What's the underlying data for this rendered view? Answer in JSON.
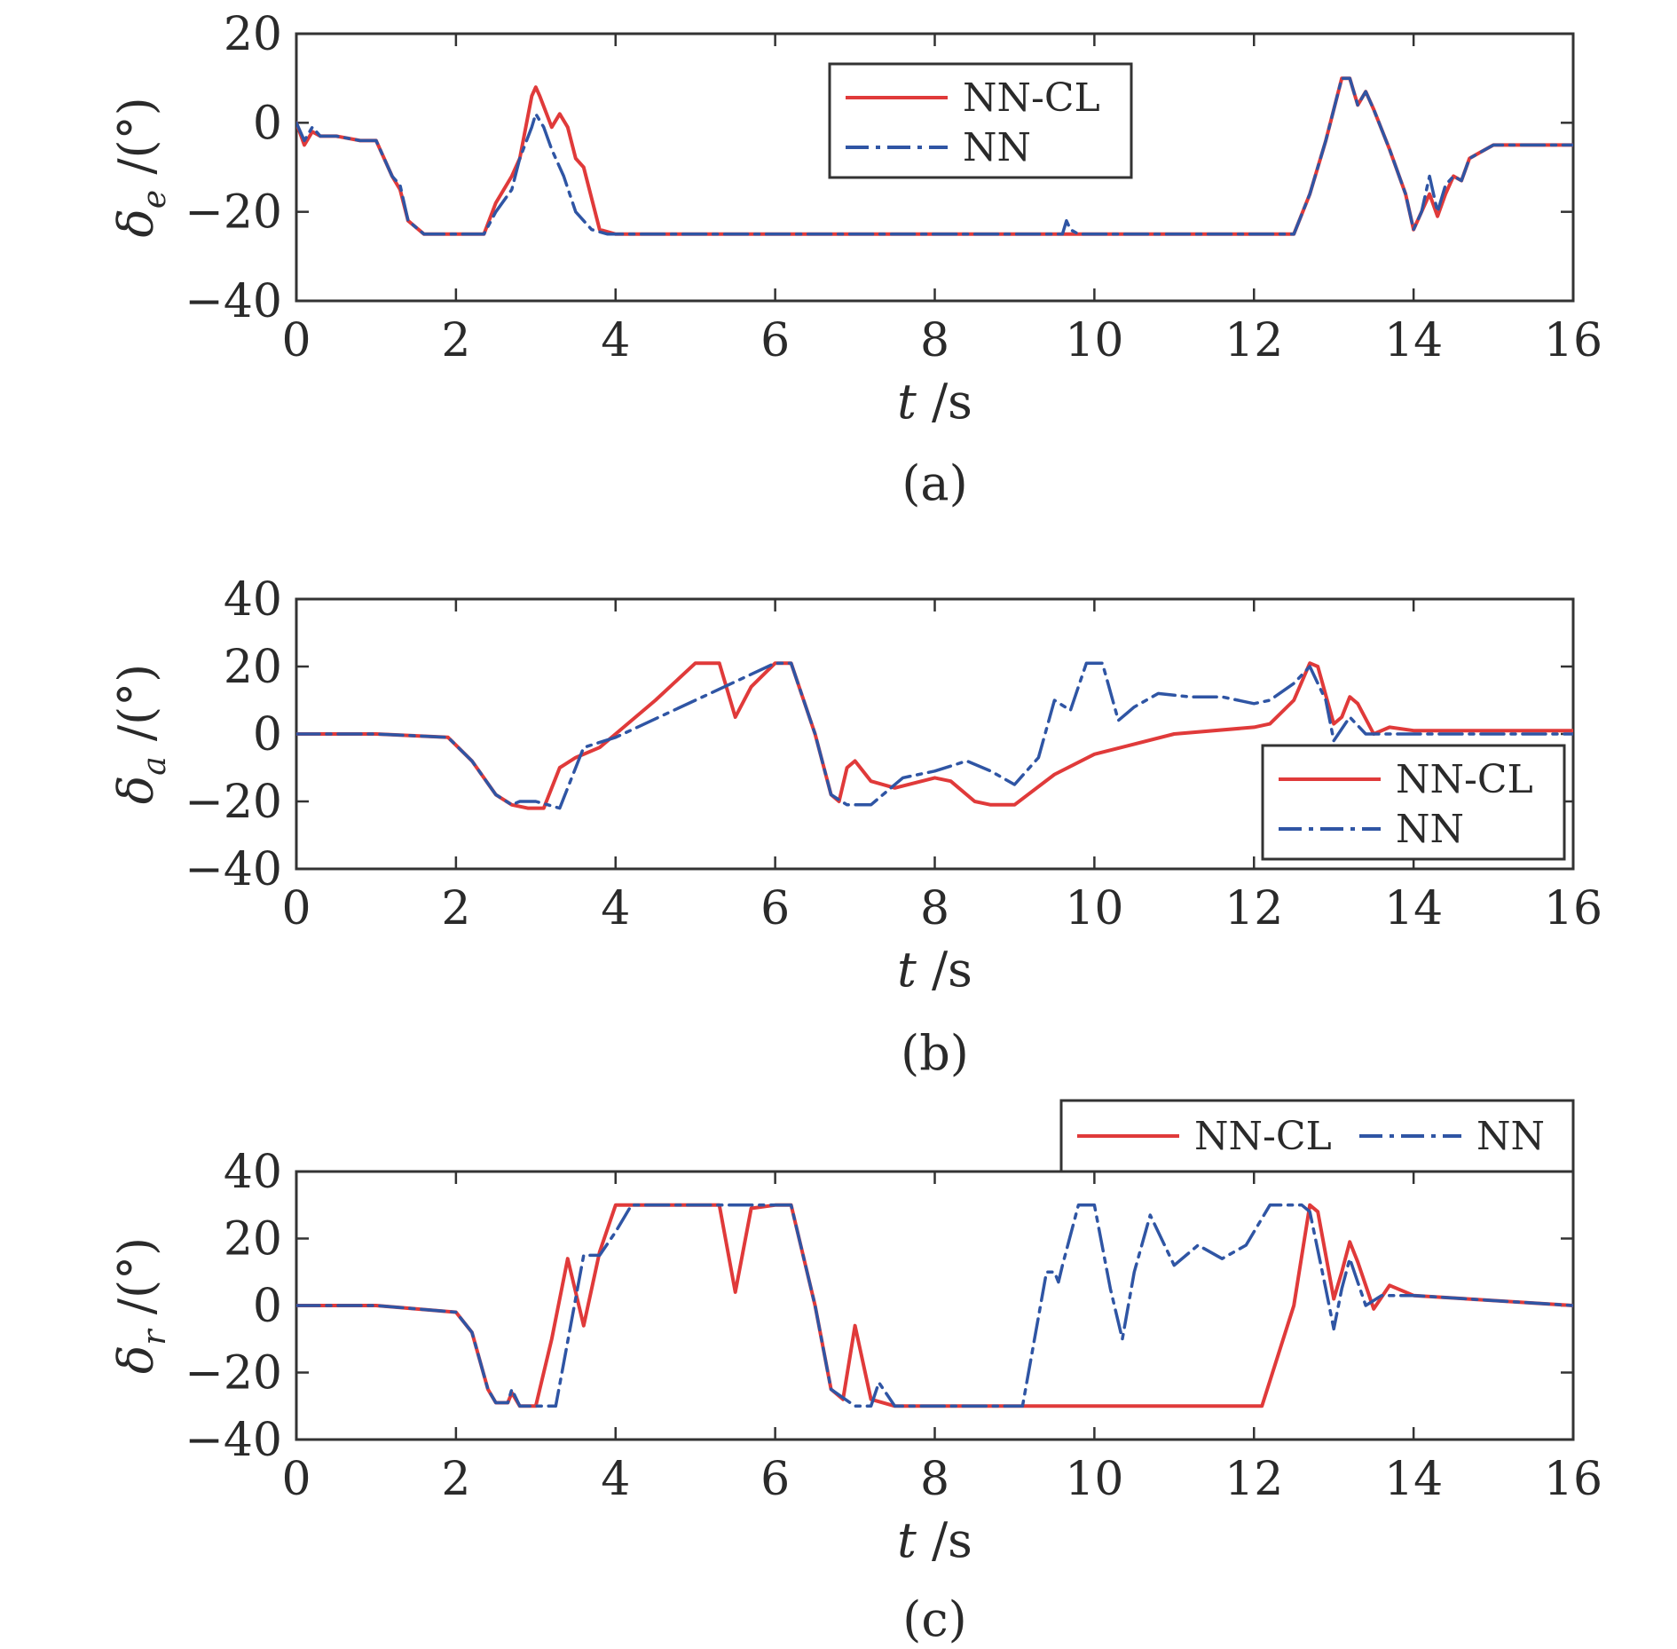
{
  "colors": {
    "nn_cl": "#e03a3a",
    "nn": "#2f55a4",
    "axis": "#333333"
  },
  "chart_data": [
    {
      "type": "line",
      "panel_caption": "(a)",
      "ylabel": {
        "symbol": "δ",
        "sub": "e",
        "unit": " /(°)"
      },
      "xlabel": {
        "symbol": "t",
        "unit": " /s"
      },
      "xlim": [
        0,
        16
      ],
      "ylim": [
        -40,
        20
      ],
      "xticks": [
        0,
        2,
        4,
        6,
        8,
        10,
        12,
        14,
        16
      ],
      "yticks": [
        -40,
        -20,
        0,
        20
      ],
      "xtick_labels": [
        "0",
        "2",
        "4",
        "6",
        "8",
        "10",
        "12",
        "14",
        "16"
      ],
      "ytick_labels": [
        "−40",
        "−20",
        "0",
        "20"
      ],
      "legend": {
        "placement": "top-center",
        "layout": "vertical",
        "entries": [
          "NN-CL",
          "NN"
        ]
      },
      "series": [
        {
          "name": "NN-CL",
          "style": "solid",
          "x": [
            0,
            0.1,
            0.2,
            0.3,
            0.5,
            0.8,
            1.0,
            1.2,
            1.3,
            1.4,
            1.6,
            1.8,
            2.0,
            2.35,
            2.5,
            2.7,
            2.8,
            2.95,
            3.0,
            3.05,
            3.2,
            3.3,
            3.4,
            3.5,
            3.6,
            3.8,
            4.0,
            6,
            8,
            10,
            12,
            12.5,
            12.7,
            12.9,
            13.1,
            13.2,
            13.3,
            13.4,
            13.5,
            13.7,
            13.9,
            14.0,
            14.1,
            14.2,
            14.3,
            14.4,
            14.5,
            14.6,
            14.7,
            14.8,
            15.0,
            16
          ],
          "y": [
            0,
            -5,
            -2,
            -3,
            -3,
            -4,
            -4,
            -12,
            -15,
            -22,
            -25,
            -25,
            -25,
            -25,
            -18,
            -12,
            -8,
            6,
            8,
            6,
            -1,
            2,
            -1,
            -8,
            -10,
            -24,
            -25,
            -25,
            -25,
            -25,
            -25,
            -25,
            -16,
            -4,
            10,
            10,
            4,
            7,
            3,
            -6,
            -16,
            -24,
            -20,
            -16,
            -21,
            -16,
            -12,
            -13,
            -8,
            -7,
            -5,
            -5
          ]
        },
        {
          "name": "NN",
          "style": "dashdot",
          "x": [
            0,
            0.1,
            0.2,
            0.3,
            0.5,
            0.8,
            1.0,
            1.2,
            1.3,
            1.4,
            1.6,
            1.8,
            2.0,
            2.35,
            2.5,
            2.7,
            2.8,
            2.95,
            3.0,
            3.1,
            3.2,
            3.35,
            3.5,
            3.7,
            3.9,
            4.0,
            6,
            8,
            9.6,
            9.65,
            9.7,
            9.8,
            10,
            12,
            12.5,
            12.7,
            12.9,
            13.1,
            13.2,
            13.3,
            13.4,
            13.5,
            13.7,
            13.9,
            14.0,
            14.1,
            14.2,
            14.3,
            14.4,
            14.5,
            14.6,
            14.7,
            14.8,
            15.0,
            16
          ],
          "y": [
            0,
            -4,
            -1,
            -3,
            -3,
            -4,
            -4,
            -12,
            -14,
            -22,
            -25,
            -25,
            -25,
            -25,
            -20,
            -15,
            -8,
            -1,
            2,
            -1,
            -6,
            -12,
            -20,
            -24,
            -25,
            -25,
            -25,
            -25,
            -25,
            -22,
            -24,
            -25,
            -25,
            -25,
            -25,
            -16,
            -4,
            10,
            10,
            4,
            7,
            3,
            -6,
            -16,
            -24,
            -20,
            -12,
            -20,
            -14,
            -12,
            -13,
            -8,
            -7,
            -5,
            -5
          ]
        }
      ]
    },
    {
      "type": "line",
      "panel_caption": "(b)",
      "ylabel": {
        "symbol": "δ",
        "sub": "a",
        "unit": " /(°)"
      },
      "xlabel": {
        "symbol": "t",
        "unit": " /s"
      },
      "xlim": [
        0,
        16
      ],
      "ylim": [
        -40,
        40
      ],
      "xticks": [
        0,
        2,
        4,
        6,
        8,
        10,
        12,
        14,
        16
      ],
      "yticks": [
        -40,
        -20,
        0,
        20,
        40
      ],
      "xtick_labels": [
        "0",
        "2",
        "4",
        "6",
        "8",
        "10",
        "12",
        "14",
        "16"
      ],
      "ytick_labels": [
        "−40",
        "−20",
        "0",
        "20",
        "40"
      ],
      "legend": {
        "placement": "bottom-right",
        "layout": "vertical",
        "entries": [
          "NN-CL",
          "NN"
        ]
      },
      "series": [
        {
          "name": "NN-CL",
          "style": "solid",
          "x": [
            0,
            1,
            1.9,
            2.2,
            2.5,
            2.7,
            2.9,
            3.1,
            3.3,
            3.5,
            3.8,
            4.0,
            4.5,
            5.0,
            5.3,
            5.5,
            5.7,
            6.0,
            6.2,
            6.5,
            6.7,
            6.8,
            6.9,
            7.0,
            7.2,
            7.5,
            8.0,
            8.2,
            8.5,
            8.7,
            9.0,
            9.5,
            10,
            11,
            12,
            12.2,
            12.5,
            12.7,
            12.8,
            13.0,
            13.1,
            13.2,
            13.3,
            13.5,
            13.7,
            14,
            16
          ],
          "y": [
            0,
            0,
            -1,
            -8,
            -18,
            -21,
            -22,
            -22,
            -10,
            -7,
            -4,
            0,
            10,
            21,
            21,
            5,
            14,
            21,
            21,
            0,
            -18,
            -20,
            -10,
            -8,
            -14,
            -16,
            -13,
            -14,
            -20,
            -21,
            -21,
            -12,
            -6,
            0,
            2,
            3,
            10,
            21,
            20,
            3,
            5,
            11,
            9,
            0,
            2,
            1,
            1
          ]
        },
        {
          "name": "NN",
          "style": "dashdot",
          "x": [
            0,
            1,
            1.9,
            2.2,
            2.5,
            2.7,
            2.8,
            3.0,
            3.3,
            3.6,
            4.0,
            5.0,
            6.0,
            6.2,
            6.5,
            6.7,
            6.9,
            7.2,
            7.6,
            8.0,
            8.4,
            8.7,
            9.0,
            9.3,
            9.5,
            9.7,
            9.9,
            10.1,
            10.3,
            10.5,
            10.8,
            11.2,
            11.6,
            12.0,
            12.2,
            12.5,
            12.7,
            12.9,
            13.0,
            13.2,
            13.4,
            14,
            16
          ],
          "y": [
            0,
            0,
            -1,
            -8,
            -18,
            -21,
            -20,
            -20,
            -22,
            -4,
            -1,
            10,
            21,
            21,
            0,
            -18,
            -21,
            -21,
            -13,
            -11,
            -8,
            -11,
            -15,
            -7,
            10,
            7,
            21,
            21,
            4,
            8,
            12,
            11,
            11,
            9,
            10,
            15,
            20,
            10,
            -2,
            5,
            0,
            0,
            0
          ]
        }
      ]
    },
    {
      "type": "line",
      "panel_caption": "(c)",
      "ylabel": {
        "symbol": "δ",
        "sub": "r",
        "unit": " /(°)"
      },
      "xlabel": {
        "symbol": "t",
        "unit": " /s"
      },
      "xlim": [
        0,
        16
      ],
      "ylim": [
        -40,
        40
      ],
      "xticks": [
        0,
        2,
        4,
        6,
        8,
        10,
        12,
        14,
        16
      ],
      "yticks": [
        -40,
        -20,
        0,
        20,
        40
      ],
      "xtick_labels": [
        "0",
        "2",
        "4",
        "6",
        "8",
        "10",
        "12",
        "14",
        "16"
      ],
      "ytick_labels": [
        "−40",
        "−20",
        "0",
        "20",
        "40"
      ],
      "legend": {
        "placement": "above-right",
        "layout": "horizontal",
        "entries": [
          "NN-CL",
          "NN"
        ]
      },
      "series": [
        {
          "name": "NN-CL",
          "style": "solid",
          "x": [
            0,
            1,
            2,
            2.2,
            2.4,
            2.5,
            2.65,
            2.7,
            2.8,
            3.0,
            3.2,
            3.4,
            3.6,
            3.8,
            4.0,
            5.3,
            5.5,
            5.7,
            6.0,
            6.2,
            6.5,
            6.7,
            6.85,
            7.0,
            7.2,
            7.5,
            8,
            9,
            10,
            12,
            12.1,
            12.5,
            12.7,
            12.8,
            13.0,
            13.1,
            13.2,
            13.3,
            13.5,
            13.7,
            14,
            16
          ],
          "y": [
            0,
            0,
            -2,
            -8,
            -25,
            -29,
            -29,
            -26,
            -30,
            -30,
            -10,
            14,
            -6,
            16,
            30,
            30,
            4,
            29,
            30,
            30,
            0,
            -25,
            -28,
            -6,
            -28,
            -30,
            -30,
            -30,
            -30,
            -30,
            -30,
            0,
            30,
            28,
            2,
            10,
            19,
            13,
            -1,
            6,
            3,
            0
          ]
        },
        {
          "name": "NN",
          "style": "dashdot",
          "x": [
            0,
            1,
            2,
            2.2,
            2.4,
            2.5,
            2.65,
            2.7,
            2.8,
            3.0,
            3.25,
            3.6,
            3.8,
            4.0,
            4.2,
            6.0,
            6.2,
            6.5,
            6.7,
            7.0,
            7.2,
            7.3,
            7.5,
            8,
            9.1,
            9.4,
            9.5,
            9.55,
            9.6,
            9.8,
            10.0,
            10.2,
            10.35,
            10.5,
            10.7,
            11.0,
            11.3,
            11.6,
            11.9,
            12.2,
            12.6,
            12.7,
            12.9,
            13.0,
            13.1,
            13.2,
            13.4,
            13.6,
            14,
            16
          ],
          "y": [
            0,
            0,
            -2,
            -8,
            -25,
            -29,
            -29,
            -25,
            -30,
            -30,
            -30,
            15,
            15,
            22,
            30,
            30,
            30,
            0,
            -25,
            -30,
            -30,
            -23,
            -30,
            -30,
            -30,
            10,
            10,
            7,
            12,
            30,
            30,
            5,
            -10,
            10,
            27,
            12,
            18,
            14,
            18,
            30,
            30,
            28,
            5,
            -7,
            5,
            14,
            0,
            3,
            3,
            0
          ]
        }
      ]
    }
  ]
}
